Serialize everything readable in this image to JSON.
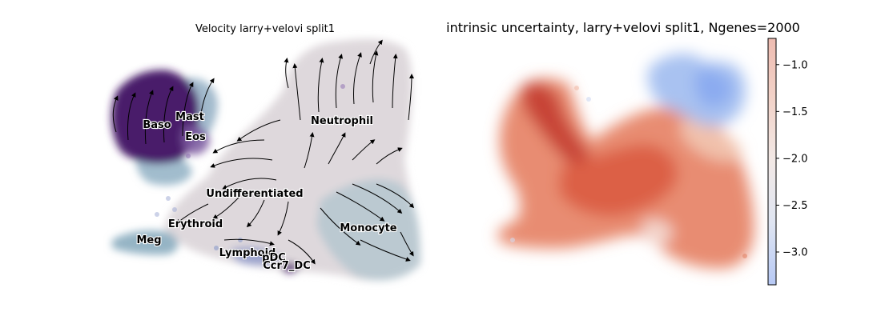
{
  "chart_data": [
    {
      "type": "scatter",
      "title": "Velocity larry+velovi split1",
      "annotations": [
        "Baso",
        "Mast",
        "Eos",
        "Neutrophil",
        "Undifferentiated",
        "Erythroid",
        "Monocyte",
        "Meg",
        "Lymphoid",
        "pDC",
        "Ccr7_DC"
      ],
      "overlay": "velocity streamlines with arrows",
      "axes_visible": false
    },
    {
      "type": "scatter",
      "title": "intrinsic uncertainty, larry+velovi split1, Ngenes=2000",
      "colormap": "coolwarm",
      "colorbar": {
        "range": [
          -3.35,
          -0.72
        ],
        "ticks": [
          -1.0,
          -1.5,
          -2.0,
          -2.5,
          -3.0
        ],
        "tick_labels": [
          "−1.0",
          "−1.5",
          "−2.0",
          "−2.5",
          "−3.0"
        ]
      },
      "axes_visible": false
    }
  ],
  "colors": {
    "baso_purple": "#4a1a6b",
    "neutral_gray": "#dcd6da",
    "teal_gray": "#a7bfca",
    "uncertainty_high": "#c0392b",
    "uncertainty_mid": "#e8896a",
    "uncertainty_low": "#8fb1f2"
  }
}
